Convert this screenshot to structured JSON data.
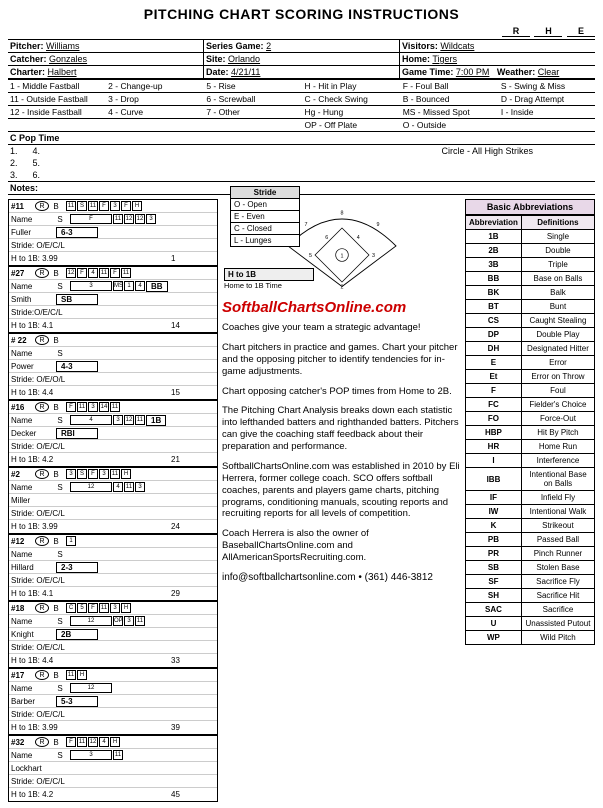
{
  "title": "PITCHING CHART SCORING INSTRUCTIONS",
  "rhe": [
    "R",
    "H",
    "E"
  ],
  "header": {
    "pitcher_l": "Pitcher:",
    "pitcher_v": "Williams",
    "series_l": "Series Game:",
    "series_v": "2",
    "visitors_l": "Visitors:",
    "visitors_v": "Wildcats",
    "catcher_l": "Catcher:",
    "catcher_v": "Gonzales",
    "site_l": "Site:",
    "site_v": "Orlando",
    "home_l": "Home:",
    "home_v": "Tigers",
    "charter_l": "Charter:",
    "charter_v": "Halbert",
    "date_l": "Date:",
    "date_v": "4/21/11",
    "time_l": "Game Time:",
    "time_v": "7:00 PM",
    "weather_l": "Weather:",
    "weather_v": "Clear"
  },
  "pitch_legend": [
    [
      "1 - Middle Fastball",
      "2 - Change-up",
      "5 - Rise",
      "H - Hit in Play",
      "F - Foul Ball",
      "S - Swing & Miss"
    ],
    [
      "11 - Outside Fastball",
      "3 - Drop",
      "6 - Screwball",
      "C - Check Swing",
      "B - Bounced",
      "D - Drag Attempt"
    ],
    [
      "12 - Inside Fastball",
      "4 - Curve",
      "7 - Other",
      "Hg - Hung",
      "MS - Missed Spot",
      "I - Inside"
    ],
    [
      "",
      "",
      "",
      "OP - Off Plate",
      "O - Outside",
      ""
    ]
  ],
  "poptime_l": "C Pop Time",
  "popnums": [
    "1.",
    "4.",
    "2.",
    "5.",
    "3.",
    "6."
  ],
  "circle_note": "Circle - All High Strikes",
  "notes_l": "Notes:",
  "stride_legend": {
    "title": "Stride",
    "rows": [
      "O - Open",
      "E - Even",
      "C - Closed",
      "L - Lunges"
    ]
  },
  "hto1b": "H to 1B",
  "hto1b_sub": "Home to 1B Time",
  "batters": [
    {
      "num": "#11",
      "hand": "R",
      "bs": "B",
      "name": "Fuller",
      "stride": "Stride: O/E/C/L",
      "h1b": "H to 1B: 3.99",
      "boxes": [
        "11",
        "S",
        "11",
        "F",
        "3",
        "F",
        "H"
      ],
      "boxes2": [
        "F",
        "11",
        "12",
        "12",
        "3"
      ],
      "mid": "6-3",
      "midnum": "1"
    },
    {
      "num": "#27",
      "hand": "R",
      "bs": "B",
      "name": "Smith",
      "stride": "Stride:O/E/C/L",
      "h1b": "H to 1B: 4.1",
      "boxes": [
        "12",
        "F",
        "4",
        "11",
        "F",
        "11"
      ],
      "boxes2": [
        "3",
        "MS",
        "1",
        "4"
      ],
      "mid": "SB",
      "midnum": "14",
      "extra": "BB"
    },
    {
      "num": "# 22",
      "hand": "R",
      "bs": "B",
      "name": "Power",
      "stride": "Stride: O/E/O/L",
      "h1b": "H to 1B: 4.4",
      "boxes": [],
      "mid": "4-3",
      "midnum": "15"
    },
    {
      "num": "#16",
      "hand": "R",
      "bs": "B",
      "name": "Decker",
      "stride": "Stride: O/E/C/L",
      "h1b": "H to 1B: 4.2",
      "boxes": [
        "F",
        "11",
        "3",
        "14",
        "11"
      ],
      "boxes2": [
        "4",
        "3",
        "12",
        "11"
      ],
      "mid": "RBI",
      "midnum": "21",
      "extra": "1B"
    },
    {
      "num": "#2",
      "hand": "R",
      "bs": "B",
      "name": "Miller",
      "stride": "Stride: O/E/C/L",
      "h1b": "H to 1B: 3.99",
      "boxes": [
        "3",
        "S",
        "F",
        "3",
        "11",
        "H"
      ],
      "boxes2": [
        "12",
        "4",
        "11",
        "3"
      ],
      "mid": "",
      "midnum": "24"
    },
    {
      "num": "#12",
      "hand": "R",
      "bs": "B",
      "name": "Hillard",
      "stride": "Stride: O/E/C/L",
      "h1b": "H to 1B: 4.1",
      "boxes": [
        "1"
      ],
      "mid": "2-3",
      "midnum": "29"
    },
    {
      "num": "#18",
      "hand": "R",
      "bs": "B",
      "name": "Knight",
      "stride": "Stride: O/E/C/L",
      "h1b": "H to 1B: 4.4",
      "boxes": [
        "C",
        "5",
        "F",
        "11",
        "3",
        "H"
      ],
      "boxes2": [
        "12",
        "OP",
        "3",
        "11"
      ],
      "mid": "2B",
      "midnum": "33"
    },
    {
      "num": "#17",
      "hand": "R",
      "bs": "B",
      "name": "Barber",
      "stride": "Stride: O/E/C/L",
      "h1b": "H to 1B: 3.99",
      "boxes": [
        "11",
        "H"
      ],
      "boxes2": [
        "12"
      ],
      "mid": "5-3",
      "midnum": "39"
    },
    {
      "num": "#32",
      "hand": "R",
      "bs": "B",
      "name": "Lockhart",
      "stride": "Stride: O/E/C/L",
      "h1b": "H to 1B: 4.2",
      "boxes": [
        "F",
        "11",
        "12",
        "4",
        "H"
      ],
      "boxes2": [
        "3",
        "11"
      ],
      "mid": "",
      "midnum": "45"
    }
  ],
  "brand": "SoftballChartsOnline.com",
  "paras": [
    "Coaches give your team a strategic advantage!",
    "Chart pitchers in practice and games.  Chart your pitcher and the opposing pitcher to identify tendencies for in-game adjustments.",
    "Chart opposing catcher's POP times from Home to 2B.",
    "The Pitching Chart Analysis breaks down each statistic into lefthanded batters and righthanded batters.  Pitchers can give the coaching staff feedback about their preparation and performance.",
    "SoftballChartsOnline.com was established in 2010 by Eli Herrera, former college coach. SCO offers softball coaches, parents and players game charts, pitching programs, conditioning manuals, scouting reports and recruiting reports for all levels of competition.",
    "Coach Herrera is also the owner of BaseballChartsOnline.com and AllAmericanSportsRecruiting.com."
  ],
  "footer": "info@softballchartsonline.com • (361) 446-3812",
  "abbr_title": "Basic Abbreviations",
  "abbr_cols": [
    "Abbreviation",
    "Definitions"
  ],
  "abbr": [
    [
      "1B",
      "Single"
    ],
    [
      "2B",
      "Double"
    ],
    [
      "3B",
      "Triple"
    ],
    [
      "BB",
      "Base on Balls"
    ],
    [
      "BK",
      "Balk"
    ],
    [
      "BT",
      "Bunt"
    ],
    [
      "CS",
      "Caught Stealing"
    ],
    [
      "DP",
      "Double Play"
    ],
    [
      "DH",
      "Designated Hitter"
    ],
    [
      "E",
      "Error"
    ],
    [
      "Et",
      "Error on Throw"
    ],
    [
      "F",
      "Foul"
    ],
    [
      "FC",
      "Fielder's Choice"
    ],
    [
      "FO",
      "Force-Out"
    ],
    [
      "HBP",
      "Hit By Pitch"
    ],
    [
      "HR",
      "Home Run"
    ],
    [
      "I",
      "Interference"
    ],
    [
      "IBB",
      "Intentional Base on Balls"
    ],
    [
      "IF",
      "Infield Fly"
    ],
    [
      "IW",
      "Intentional Walk"
    ],
    [
      "K",
      "Strikeout"
    ],
    [
      "PB",
      "Passed Ball"
    ],
    [
      "PR",
      "Pinch Runner"
    ],
    [
      "SB",
      "Stolen Base"
    ],
    [
      "SF",
      "Sacrifice Fly"
    ],
    [
      "SH",
      "Sacrifice Hit"
    ],
    [
      "SAC",
      "Sacrifice"
    ],
    [
      "U",
      "Unassisted Putout"
    ],
    [
      "WP",
      "Wild Pitch"
    ]
  ]
}
